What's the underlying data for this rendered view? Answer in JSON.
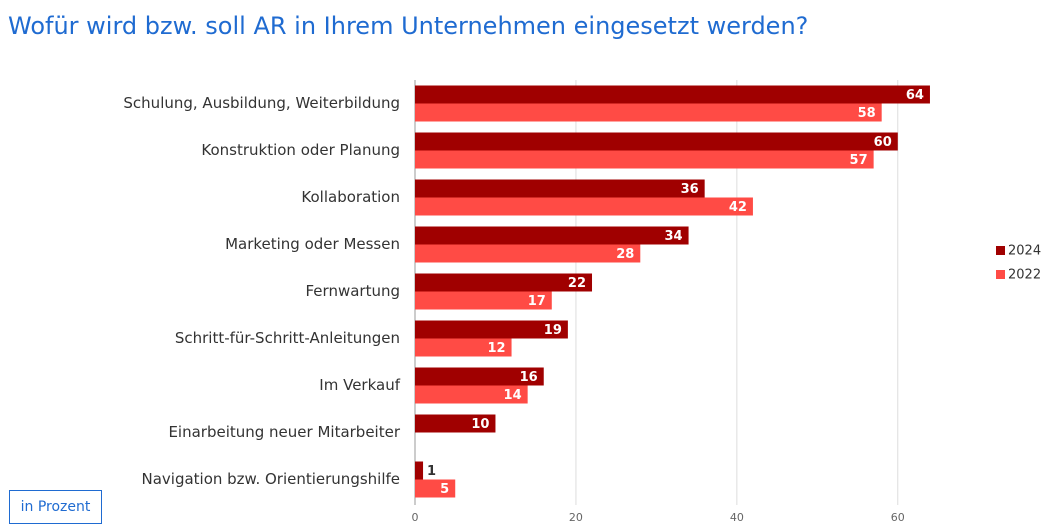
{
  "chart_data": {
    "type": "hbar",
    "title": "Wofür wird bzw. soll AR in Ihrem Unternehmen eingesetzt werden?",
    "unit_note": "in Prozent",
    "categories": [
      "Schulung, Ausbildung, Weiterbildung",
      "Konstruktion oder Planung",
      "Kollaboration",
      "Marketing oder Messen",
      "Fernwartung",
      "Schritt-für-Schritt-Anleitungen",
      "Im Verkauf",
      "Einarbeitung neuer Mitarbeiter",
      "Navigation bzw. Orientierungshilfe"
    ],
    "series": [
      {
        "name": "2024",
        "color": "#a00000",
        "values": [
          64,
          60,
          36,
          34,
          22,
          19,
          16,
          10,
          1
        ]
      },
      {
        "name": "2022",
        "color": "#ff4b45",
        "values": [
          58,
          57,
          42,
          28,
          17,
          12,
          14,
          null,
          5
        ]
      }
    ],
    "xlim": [
      0,
      65
    ],
    "xticks": [
      0,
      20,
      40,
      60
    ],
    "grid": true,
    "legend": "right"
  }
}
